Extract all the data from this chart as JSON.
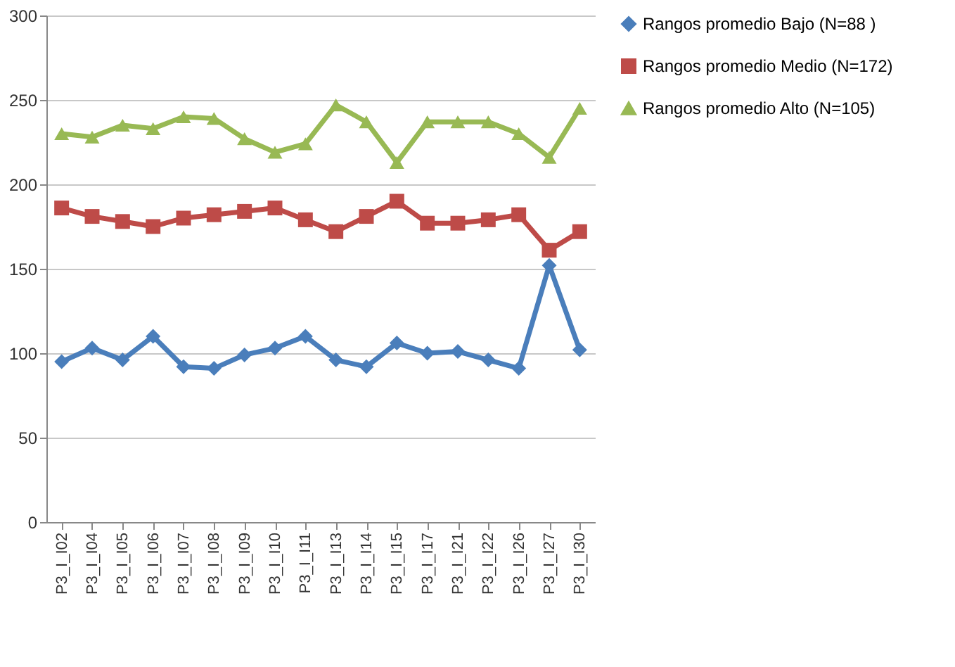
{
  "chart_data": {
    "type": "line",
    "categories": [
      "P3_I_I02",
      "P3_I_I04",
      "P3_I_I05",
      "P3_I_I06",
      "P3_I_I07",
      "P3_I_I08",
      "P3_I_I09",
      "P3_I_I10",
      "P3_I_I11",
      "P3_I_I13",
      "P3_I_I14",
      "P3_I_I15",
      "P3_I_I17",
      "P3_I_I21",
      "P3_I_I22",
      "P3_I_I26",
      "P3_I_I27",
      "P3_I_I30"
    ],
    "series": [
      {
        "name": "Rangos promedio Bajo (N=88 )",
        "color": "#4a7ebb",
        "marker": "diamond",
        "values": [
          95,
          103,
          96,
          110,
          92,
          91,
          99,
          103,
          110,
          96,
          92,
          106,
          100,
          101,
          96,
          91,
          152,
          102
        ]
      },
      {
        "name": "Rangos promedio Medio (N=172)",
        "color": "#be4b48",
        "marker": "square",
        "values": [
          186,
          181,
          178,
          175,
          180,
          182,
          184,
          186,
          179,
          172,
          181,
          190,
          177,
          177,
          179,
          182,
          161,
          172
        ]
      },
      {
        "name": "Rangos promedio Alto (N=105)",
        "color": "#98b954",
        "marker": "triangle",
        "values": [
          230,
          228,
          235,
          233,
          240,
          239,
          227,
          219,
          224,
          247,
          237,
          213,
          237,
          237,
          237,
          230,
          216,
          245
        ]
      }
    ],
    "ylim": [
      0,
      300
    ],
    "yticks": [
      0,
      50,
      100,
      150,
      200,
      250,
      300
    ],
    "grid": "y",
    "legend": "right",
    "line_style": "solid"
  }
}
